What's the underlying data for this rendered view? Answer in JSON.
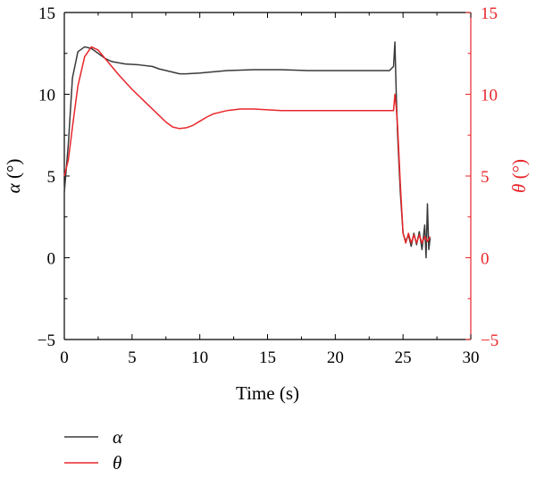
{
  "chart_data": {
    "type": "line",
    "xlabel": "Time (s)",
    "ylabel_left": "α (°)",
    "ylabel_left_symbol": "α",
    "ylabel_left_unit": " (°)",
    "ylabel_right": "θ (°)",
    "ylabel_right_symbol": "θ",
    "ylabel_right_unit": " (°)",
    "xlim": [
      0,
      30
    ],
    "ylim_left": [
      -5,
      15
    ],
    "ylim_right": [
      -5,
      15
    ],
    "x_ticks": [
      0,
      5,
      10,
      15,
      20,
      25,
      30
    ],
    "y_ticks_left": [
      -5,
      0,
      5,
      10,
      15
    ],
    "y_ticks_right": [
      -5,
      0,
      5,
      10,
      15
    ],
    "y_tick_labels_left": [
      "−5",
      "0",
      "5",
      "10",
      "15"
    ],
    "y_tick_labels_right": [
      "−5",
      "0",
      "5",
      "10",
      "15"
    ],
    "x_tick_labels": [
      "0",
      "5",
      "10",
      "15",
      "20",
      "25",
      "30"
    ],
    "grid": false,
    "legend_position": "bottom-left",
    "colors": {
      "alpha": "#3a3a3a",
      "theta": "#e8262a",
      "right_axis": "#e8262a",
      "left_axis": "#000000"
    },
    "series": [
      {
        "name": "α",
        "axis": "left",
        "x": [
          0,
          0.3,
          0.6,
          1.0,
          1.5,
          2.0,
          2.5,
          3.0,
          3.5,
          4.5,
          5.5,
          6.5,
          7.0,
          8.0,
          8.5,
          9.0,
          10.0,
          12.0,
          14.0,
          16.0,
          18.0,
          20.0,
          22.0,
          24.0,
          24.3,
          24.4,
          24.5,
          24.6,
          24.8,
          25.0,
          25.2,
          25.4,
          25.6,
          25.8,
          26.0,
          26.2,
          26.4,
          26.6,
          26.7,
          26.8,
          26.9,
          27.0
        ],
        "values": [
          4.0,
          7.0,
          11.0,
          12.6,
          12.9,
          12.8,
          12.5,
          12.2,
          12.0,
          11.85,
          11.8,
          11.7,
          11.55,
          11.35,
          11.25,
          11.25,
          11.3,
          11.45,
          11.5,
          11.5,
          11.45,
          11.45,
          11.45,
          11.45,
          11.7,
          13.2,
          10.0,
          7.5,
          4.0,
          1.5,
          1.0,
          1.4,
          0.7,
          1.5,
          0.8,
          1.6,
          0.5,
          2.0,
          0.0,
          3.3,
          0.5,
          1.2
        ]
      },
      {
        "name": "θ",
        "axis": "right",
        "x": [
          0,
          0.3,
          0.6,
          1.0,
          1.5,
          2.0,
          2.5,
          3.0,
          4.0,
          5.0,
          6.0,
          7.0,
          7.5,
          8.0,
          8.5,
          9.0,
          9.5,
          10.0,
          10.5,
          11.0,
          12.0,
          13.0,
          14.0,
          15.0,
          16.0,
          18.0,
          20.0,
          22.0,
          24.0,
          24.3,
          24.4,
          24.5,
          24.6,
          24.8,
          25.0,
          25.2,
          25.4,
          25.6,
          25.8,
          26.0,
          26.2,
          26.4,
          26.6,
          26.8,
          27.0
        ],
        "values": [
          5.0,
          6.0,
          8.0,
          10.5,
          12.3,
          12.9,
          12.7,
          12.2,
          11.2,
          10.3,
          9.5,
          8.7,
          8.3,
          8.0,
          7.9,
          7.95,
          8.1,
          8.35,
          8.6,
          8.8,
          9.0,
          9.1,
          9.1,
          9.05,
          9.0,
          9.0,
          9.0,
          9.0,
          9.0,
          9.0,
          10.0,
          9.2,
          8.0,
          4.5,
          1.5,
          0.9,
          1.5,
          0.9,
          1.4,
          0.9,
          1.4,
          0.9,
          1.3,
          1.0,
          1.3
        ]
      }
    ]
  }
}
